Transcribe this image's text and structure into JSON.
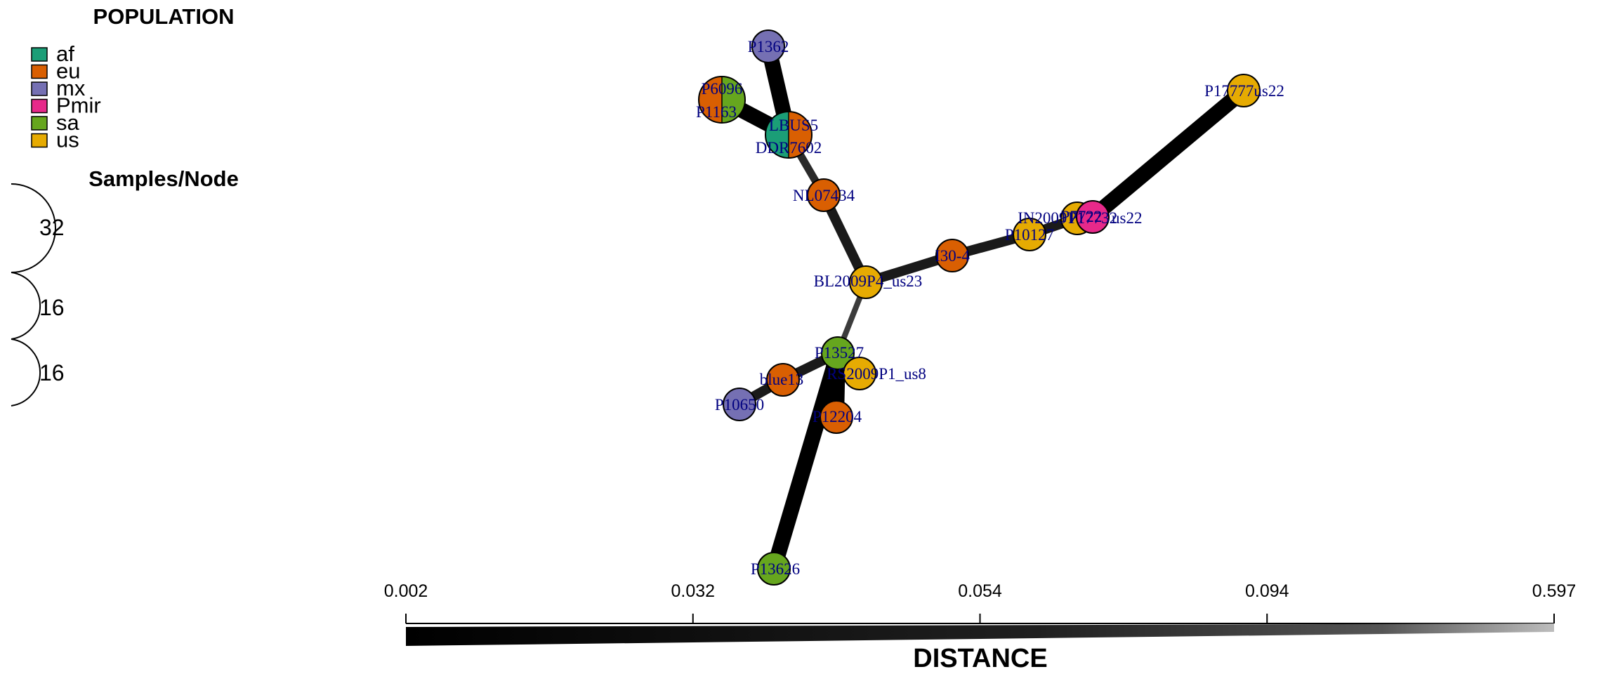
{
  "legend": {
    "title": "POPULATION",
    "items": [
      {
        "label": "af",
        "color": "#1b9e77"
      },
      {
        "label": "eu",
        "color": "#d95f02"
      },
      {
        "label": "mx",
        "color": "#7570b3"
      },
      {
        "label": "Pmir",
        "color": "#e7298a"
      },
      {
        "label": "sa",
        "color": "#66a61e"
      },
      {
        "label": "us",
        "color": "#e6ab02"
      }
    ]
  },
  "size_legend": {
    "title": "Samples/Node",
    "values": [
      "32",
      "16",
      "16"
    ]
  },
  "network": {
    "nodes": [
      {
        "id": "P1362",
        "label": "P1362",
        "pops": [
          "mx"
        ]
      },
      {
        "id": "P6096",
        "label": "P6096",
        "pops": [
          "eu",
          "sa"
        ]
      },
      {
        "id": "P1163",
        "label": "P1163",
        "pops": [
          "eu"
        ]
      },
      {
        "id": "LBUS5",
        "label": "LBUS5",
        "pops": [
          "af",
          "eu"
        ]
      },
      {
        "id": "DDR7602",
        "label": "DDR7602",
        "pops": [
          "af",
          "eu"
        ]
      },
      {
        "id": "NL07434",
        "label": "NL07434",
        "pops": [
          "eu"
        ]
      },
      {
        "id": "BL2009P4_us23",
        "label": "BL2009P4_us23",
        "pops": [
          "us"
        ]
      },
      {
        "id": "I30-4",
        "label": "I30-4",
        "pops": [
          "eu"
        ]
      },
      {
        "id": "P10127",
        "label": "P10127",
        "pops": [
          "us"
        ]
      },
      {
        "id": "IN2009T1",
        "label": "IN2009T1",
        "pops": [
          "us"
        ]
      },
      {
        "id": "P7722",
        "label": "P7722",
        "pops": [
          "us"
        ]
      },
      {
        "id": "Pmir_us22",
        "label": "P17732",
        "pops": [
          "Pmir"
        ]
      },
      {
        "id": "P17777us22",
        "label": "P17777us22",
        "pops": [
          "us"
        ]
      },
      {
        "id": "P13527",
        "label": "P13527",
        "pops": [
          "sa"
        ]
      },
      {
        "id": "RS2009P1_us8",
        "label": "RS2009P1_us8",
        "pops": [
          "us"
        ]
      },
      {
        "id": "blue13",
        "label": "blue13",
        "pops": [
          "eu"
        ]
      },
      {
        "id": "P10650",
        "label": "P10650",
        "pops": [
          "mx"
        ]
      },
      {
        "id": "P12204",
        "label": "P12204",
        "pops": [
          "eu"
        ]
      },
      {
        "id": "P13626",
        "label": "P13626",
        "pops": [
          "sa"
        ]
      }
    ],
    "extra_label": "us22",
    "edges": [
      {
        "from": "P1362",
        "to": "LBUS5",
        "distance": 0.002
      },
      {
        "from": "P6096",
        "to": "LBUS5",
        "distance": 0.002
      },
      {
        "from": "LBUS5",
        "to": "NL07434",
        "distance": 0.06
      },
      {
        "from": "NL07434",
        "to": "BL2009P4_us23",
        "distance": 0.032
      },
      {
        "from": "BL2009P4_us23",
        "to": "I30-4",
        "distance": 0.032
      },
      {
        "from": "I30-4",
        "to": "P10127",
        "distance": 0.032
      },
      {
        "from": "P10127",
        "to": "IN2009T1",
        "distance": 0.032
      },
      {
        "from": "IN2009T1",
        "to": "Pmir_us22",
        "distance": 0.032
      },
      {
        "from": "Pmir_us22",
        "to": "P17777us22",
        "distance": 0.002
      },
      {
        "from": "BL2009P4_us23",
        "to": "P13527",
        "distance": 0.1
      },
      {
        "from": "P13527",
        "to": "blue13",
        "distance": 0.032
      },
      {
        "from": "blue13",
        "to": "P10650",
        "distance": 0.032
      },
      {
        "from": "P13527",
        "to": "RS2009P1_us8",
        "distance": 0.032
      },
      {
        "from": "P13527",
        "to": "P12204",
        "distance": 0.002
      },
      {
        "from": "P13527",
        "to": "P13626",
        "distance": 0.002
      }
    ]
  },
  "distance_axis": {
    "title": "DISTANCE",
    "ticks": [
      "0.002",
      "0.032",
      "0.054",
      "0.094",
      "0.597"
    ]
  }
}
